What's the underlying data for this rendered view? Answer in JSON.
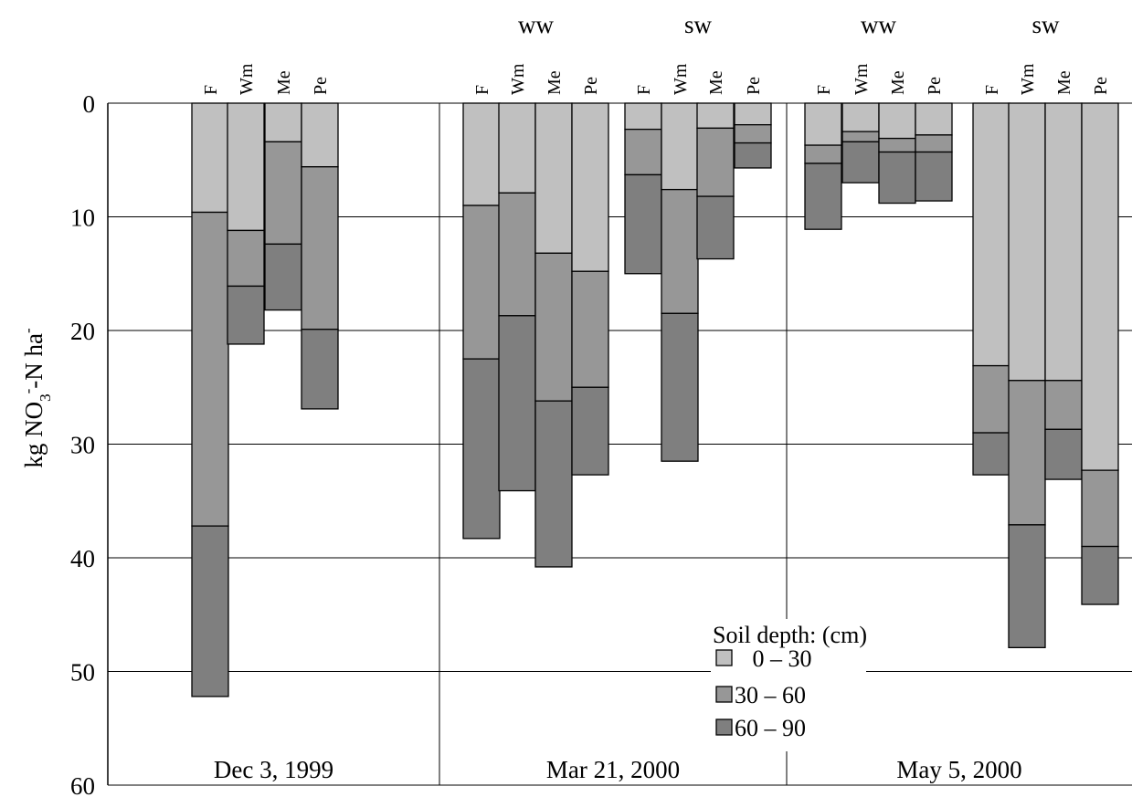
{
  "chart_data": {
    "type": "bar",
    "subtype": "stacked",
    "orientation": "downward",
    "ylabel": {
      "prefix": "kg NO",
      "sub": "3",
      "sup": "-",
      "suffix": "-N ha",
      "sup2": "-"
    },
    "ylim": [
      0,
      60
    ],
    "yticks": [
      0,
      10,
      20,
      30,
      40,
      50,
      60
    ],
    "grid": true,
    "legend_title": "Soil depth: (cm)",
    "legend_position": "bottom-center",
    "series": [
      {
        "name": "0 – 30",
        "color": "#c0c0c0"
      },
      {
        "name": "30 – 60",
        "color": "#979797"
      },
      {
        "name": "60 – 90",
        "color": "#7f7f7f"
      }
    ],
    "panels": [
      {
        "date": "Dec 3, 1999",
        "groups": [
          {
            "label": "",
            "bars": [
              {
                "label": "F",
                "values": [
                  9.6,
                  27.6,
                  15.0
                ]
              },
              {
                "label": "Wm",
                "values": [
                  11.2,
                  4.9,
                  5.1
                ]
              },
              {
                "label": "Me",
                "values": [
                  3.4,
                  9.0,
                  5.8
                ]
              },
              {
                "label": "Pe",
                "values": [
                  5.6,
                  14.3,
                  7.0
                ]
              }
            ]
          }
        ]
      },
      {
        "date": "Mar 21, 2000",
        "groups": [
          {
            "label": "WW",
            "bars": [
              {
                "label": "F",
                "values": [
                  9.0,
                  13.5,
                  15.8
                ]
              },
              {
                "label": "Wm",
                "values": [
                  7.9,
                  10.8,
                  15.4
                ]
              },
              {
                "label": "Me",
                "values": [
                  13.2,
                  13.0,
                  14.6
                ]
              },
              {
                "label": "Pe",
                "values": [
                  14.8,
                  10.2,
                  7.7
                ]
              }
            ]
          },
          {
            "label": "SW",
            "bars": [
              {
                "label": "F",
                "values": [
                  2.3,
                  4.0,
                  8.7
                ]
              },
              {
                "label": "Wm",
                "values": [
                  7.6,
                  10.9,
                  13.0
                ]
              },
              {
                "label": "Me",
                "values": [
                  2.2,
                  6.0,
                  5.5
                ]
              },
              {
                "label": "Pe",
                "values": [
                  1.9,
                  1.6,
                  2.2
                ]
              }
            ]
          }
        ]
      },
      {
        "date": "May 5, 2000",
        "groups": [
          {
            "label": "WW",
            "bars": [
              {
                "label": "F",
                "values": [
                  3.7,
                  1.6,
                  5.8
                ]
              },
              {
                "label": "Wm",
                "values": [
                  2.5,
                  0.9,
                  3.6
                ]
              },
              {
                "label": "Me",
                "values": [
                  3.1,
                  1.2,
                  4.5
                ]
              },
              {
                "label": "Pe",
                "values": [
                  2.8,
                  1.5,
                  4.3
                ]
              }
            ]
          },
          {
            "label": "SW",
            "bars": [
              {
                "label": "F",
                "values": [
                  23.1,
                  5.9,
                  3.7
                ]
              },
              {
                "label": "Wm",
                "values": [
                  24.4,
                  12.7,
                  10.8
                ]
              },
              {
                "label": "Me",
                "values": [
                  24.4,
                  4.3,
                  4.4
                ]
              },
              {
                "label": "Pe",
                "values": [
                  32.3,
                  6.7,
                  5.1
                ]
              }
            ]
          }
        ]
      }
    ]
  }
}
